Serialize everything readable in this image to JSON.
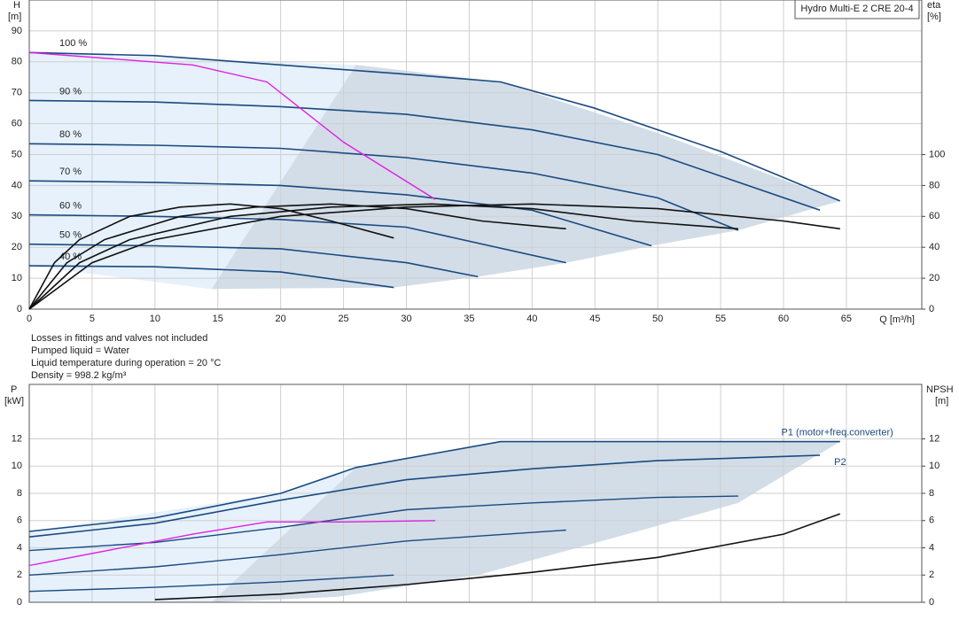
{
  "chart_data": [
    {
      "type": "line",
      "title": "Hydro Multi-E 2 CRE 20-4",
      "y_label": "H",
      "y_unit": "[m]",
      "y2_label": "eta",
      "y2_unit": "[%]",
      "x_label": "Q [m³/h]",
      "notes": [
        "Losses in fittings and valves not included",
        "Pumped liquid = Water",
        "Liquid temperature during operation = 20 °C",
        "Density = 998.2 kg/m³"
      ],
      "xlim": [
        0,
        71
      ],
      "xticks": [
        0,
        5,
        10,
        15,
        20,
        25,
        30,
        35,
        40,
        45,
        50,
        55,
        60,
        65
      ],
      "ylim": [
        0,
        100
      ],
      "yticks": [
        0,
        10,
        20,
        30,
        40,
        50,
        60,
        70,
        80,
        90
      ],
      "y2lim": [
        0,
        200
      ],
      "y2ticks": [
        0,
        20,
        40,
        60,
        80,
        100
      ],
      "grid": true,
      "areas": [
        {
          "color": "#e6f1fb",
          "x": [
            0,
            26,
            14.5,
            0
          ],
          "values": [
            83,
            79,
            6.5,
            14
          ]
        },
        {
          "color": "#d2dde8",
          "x": [
            14.5,
            26,
            37.5,
            50,
            64.5,
            56.4,
            49.5,
            42.7,
            35.7,
            29,
            14.5
          ],
          "values": [
            6.5,
            79,
            73.5,
            57,
            35,
            25.5,
            20.5,
            15,
            10.5,
            7,
            6.5
          ]
        }
      ],
      "series": [
        {
          "name": "100 %",
          "color": "#1a4a80",
          "x": [
            0,
            10,
            20,
            30,
            37.5,
            45,
            55,
            64.5
          ],
          "values": [
            83,
            82,
            79,
            76,
            73.5,
            65,
            51,
            35
          ]
        },
        {
          "name": "90 %",
          "color": "#1a4a80",
          "x": [
            0,
            10,
            20,
            30,
            40,
            50,
            62.9
          ],
          "values": [
            67.5,
            67,
            65.5,
            63,
            58,
            50,
            32
          ]
        },
        {
          "name": "80 %",
          "color": "#1a4a80",
          "x": [
            0,
            10,
            20,
            30,
            40,
            50,
            56.4
          ],
          "values": [
            53.5,
            53,
            52,
            49,
            44,
            36,
            25.5
          ]
        },
        {
          "name": "70 %",
          "color": "#1a4a80",
          "x": [
            0,
            10,
            20,
            30,
            40,
            49.5
          ],
          "values": [
            41.5,
            41,
            40,
            37,
            32,
            20.5
          ]
        },
        {
          "name": "60 %",
          "color": "#1a4a80",
          "x": [
            0,
            10,
            20,
            30,
            42.7
          ],
          "values": [
            30.5,
            30,
            29,
            26.5,
            15
          ]
        },
        {
          "name": "50 %",
          "color": "#1a4a80",
          "x": [
            0,
            10,
            20,
            30,
            35.7
          ],
          "values": [
            21,
            20.5,
            19.5,
            15,
            10.5
          ]
        },
        {
          "name": "40 %",
          "color": "#1a4a80",
          "x": [
            0,
            10,
            20,
            29
          ],
          "values": [
            14,
            13.7,
            12,
            7
          ]
        },
        {
          "color": "#e020e0",
          "x": [
            0,
            13,
            18.9,
            25,
            32.3
          ],
          "values": [
            83,
            79,
            73.5,
            54,
            35.5
          ]
        },
        {
          "color": "#111111",
          "axis": "y2",
          "x": [
            0,
            5,
            10,
            20,
            30,
            40,
            50,
            60,
            64.5
          ],
          "values": [
            0,
            30,
            45,
            60,
            66,
            68,
            65,
            57,
            52
          ]
        },
        {
          "color": "#111111",
          "axis": "y2",
          "x": [
            0,
            4,
            8,
            16,
            24,
            32,
            40,
            48,
            56.4
          ],
          "values": [
            0,
            30,
            45,
            60,
            66,
            68,
            65,
            57,
            52
          ]
        },
        {
          "color": "#111111",
          "axis": "y2",
          "x": [
            0,
            3,
            6,
            12,
            18,
            24,
            30,
            36,
            42.7
          ],
          "values": [
            0,
            30,
            45,
            60,
            66,
            68,
            65,
            57,
            52
          ]
        },
        {
          "color": "#111111",
          "axis": "y2",
          "x": [
            0,
            2,
            4,
            8,
            12,
            16,
            20,
            24,
            29
          ],
          "values": [
            0,
            30,
            45,
            60,
            66,
            68,
            65,
            57,
            46
          ]
        }
      ]
    },
    {
      "type": "line",
      "y_label": "P",
      "y_unit": "[kW]",
      "y2_label": "NPSH",
      "y2_unit": "[m]",
      "xlim": [
        0,
        71
      ],
      "xticks": [
        0,
        5,
        10,
        15,
        20,
        25,
        30,
        35,
        40,
        45,
        50,
        55,
        60,
        65
      ],
      "ylim": [
        0,
        16
      ],
      "yticks": [
        0,
        2,
        4,
        6,
        8,
        10,
        12
      ],
      "y2lim": [
        0,
        16
      ],
      "y2ticks": [
        0,
        2,
        4,
        6,
        8,
        10,
        12
      ],
      "grid": true,
      "areas": [
        {
          "color": "#e6f1fb",
          "x": [
            0,
            20,
            26,
            14.5,
            0
          ],
          "values": [
            5.2,
            8,
            9.9,
            0,
            0
          ]
        },
        {
          "color": "#d2dde8",
          "x": [
            14.5,
            26,
            37.5,
            64.5,
            56.4,
            49.5,
            35.7,
            24.5
          ],
          "values": [
            0,
            9.9,
            11.8,
            11.8,
            7.3,
            5.5,
            2,
            0.4
          ]
        }
      ],
      "series": [
        {
          "name": "P1 (motor+freq.converter)",
          "color": "#1a4a80",
          "x": [
            0,
            10,
            20,
            26,
            37.5,
            45,
            55,
            64.5
          ],
          "values": [
            5.2,
            6.2,
            8,
            9.9,
            11.8,
            11.8,
            11.8,
            11.8
          ]
        },
        {
          "name": "P2",
          "color": "#1a4a80",
          "x": [
            0,
            10,
            20,
            30,
            40,
            50,
            62.9
          ],
          "values": [
            4.8,
            5.8,
            7.5,
            9,
            9.8,
            10.4,
            10.8
          ]
        },
        {
          "color": "#1a4a80",
          "x": [
            0,
            10,
            20,
            30,
            40,
            50,
            56.4
          ],
          "values": [
            3.8,
            4.4,
            5.5,
            6.8,
            7.3,
            7.7,
            7.8
          ]
        },
        {
          "color": "#1a4a80",
          "x": [
            0,
            10,
            20,
            30,
            42.7
          ],
          "values": [
            2,
            2.6,
            3.5,
            4.5,
            5.3
          ]
        },
        {
          "color": "#1a4a80",
          "x": [
            0,
            10,
            20,
            29
          ],
          "values": [
            0.8,
            1.1,
            1.5,
            2
          ]
        },
        {
          "color": "#e020e0",
          "x": [
            0,
            13,
            18.9,
            25,
            32.3
          ],
          "values": [
            2.7,
            5,
            5.9,
            5.9,
            6
          ]
        },
        {
          "color": "#111111",
          "axis": "y2",
          "x": [
            10,
            20,
            30,
            40,
            50,
            60,
            64.5
          ],
          "values": [
            0.2,
            0.6,
            1.3,
            2.2,
            3.3,
            5,
            6.5
          ]
        }
      ]
    }
  ]
}
